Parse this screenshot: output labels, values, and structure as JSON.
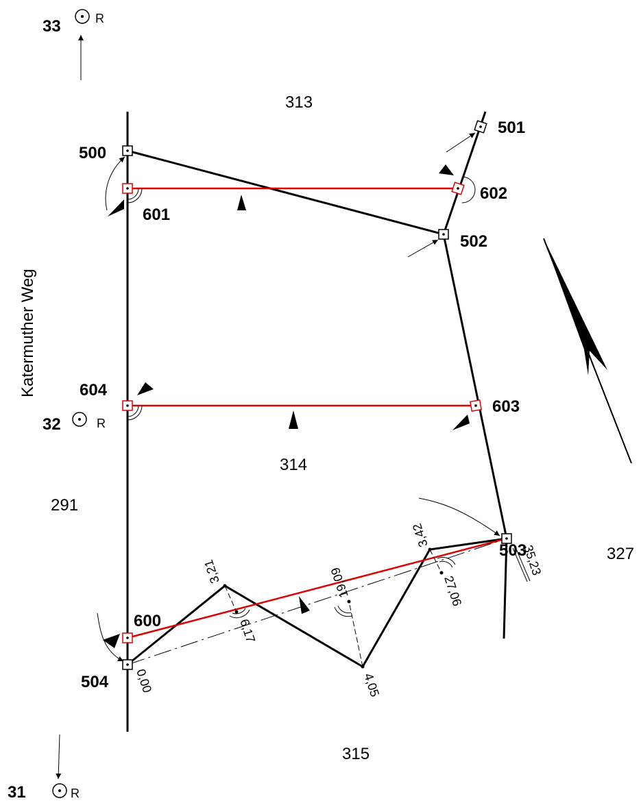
{
  "street_name": "Katermuther Weg",
  "parcels": [
    "313",
    "314",
    "291",
    "327",
    "315"
  ],
  "points": {
    "p500": "500",
    "p501": "501",
    "p502": "502",
    "p503": "503",
    "p504": "504",
    "p600": "600",
    "p601": "601",
    "p602": "602",
    "p603": "603",
    "p604": "604"
  },
  "reference_points": {
    "r33": {
      "number": "33",
      "mark": "R"
    },
    "r32": {
      "number": "32",
      "mark": "R"
    },
    "r31": {
      "number": "31",
      "mark": "R"
    }
  },
  "measurements": {
    "m000": "0,00",
    "m617": "6,17",
    "m1909": "19,09",
    "m2706": "27,06",
    "m3523": "35,23",
    "m321": "3,21",
    "m405": "4,05",
    "m342": "3,42"
  },
  "colors": {
    "boundary": "#000000",
    "new_line": "#e00000"
  }
}
